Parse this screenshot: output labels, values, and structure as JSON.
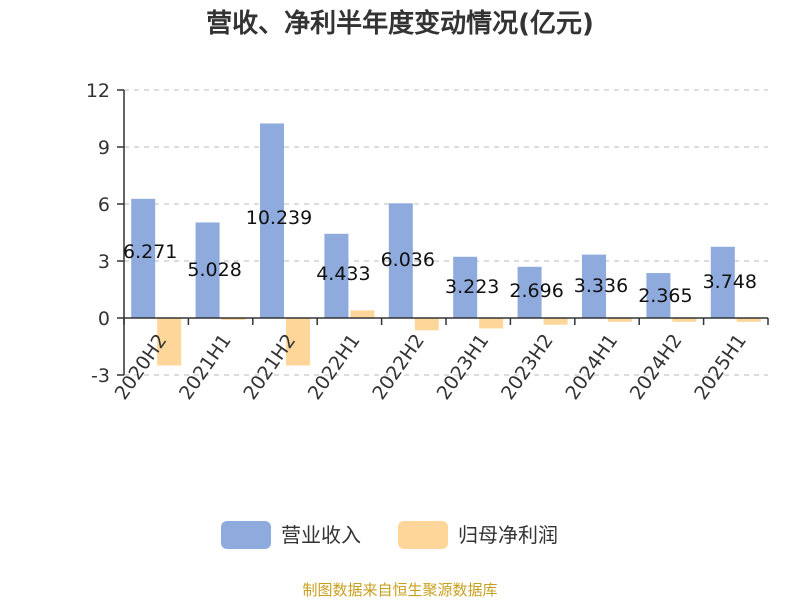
{
  "chart_data": {
    "type": "bar",
    "title": "营收、净利半年度变动情况(亿元)",
    "categories": [
      "2020H2",
      "2021H1",
      "2021H2",
      "2022H1",
      "2022H2",
      "2023H1",
      "2023H2",
      "2024H1",
      "2024H2",
      "2025H1"
    ],
    "series": [
      {
        "name": "营业收入",
        "color": "#8faadc",
        "values": [
          6.271,
          5.028,
          10.239,
          4.433,
          6.036,
          3.223,
          2.696,
          3.336,
          2.365,
          3.748
        ],
        "labels": [
          "6.271",
          "5.028",
          "10.239",
          "4.433",
          "6.036",
          "3.223",
          "2.696",
          "3.336",
          "2.365",
          "3.748"
        ]
      },
      {
        "name": "归母净利润",
        "color": "#ffd699",
        "values": [
          -2.5,
          -0.1,
          -2.5,
          0.4,
          -0.65,
          -0.55,
          -0.35,
          -0.2,
          -0.2,
          -0.2
        ]
      }
    ],
    "ylim": [
      -3,
      12
    ],
    "yticks": [
      "-3",
      "0",
      "3",
      "6",
      "9",
      "12"
    ],
    "grid": true,
    "legend_position": "bottom"
  },
  "footer": {
    "source": "制图数据来自恒生聚源数据库"
  }
}
